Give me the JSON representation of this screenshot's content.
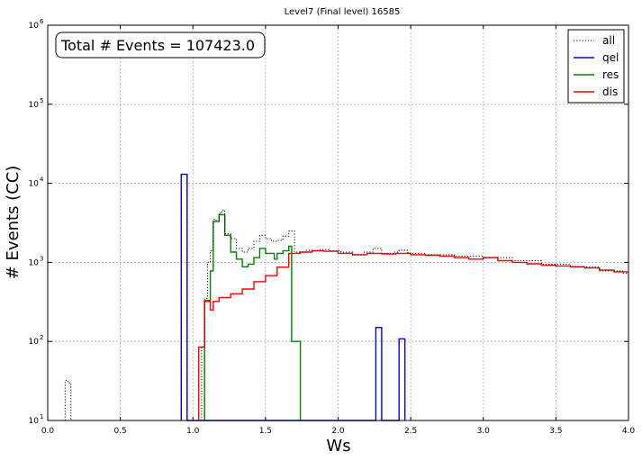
{
  "chart_data": {
    "type": "line",
    "step": true,
    "title": "Level7 (Final level) 16585",
    "xlabel": "Ws",
    "ylabel": "# Events (CC)",
    "xlim": [
      0.0,
      4.0
    ],
    "ylim": [
      10,
      1000000
    ],
    "yscale": "log",
    "grid": true,
    "legend_position": "top-right",
    "annotation": "Total # Events = 107423.0",
    "xticks": [
      "0.0",
      "0.5",
      "1.0",
      "1.5",
      "2.0",
      "2.5",
      "3.0",
      "3.5",
      "4.0"
    ],
    "yticks": [
      {
        "base": "10",
        "exp": "1",
        "value": 10
      },
      {
        "base": "10",
        "exp": "2",
        "value": 100
      },
      {
        "base": "10",
        "exp": "3",
        "value": 1000
      },
      {
        "base": "10",
        "exp": "4",
        "value": 10000
      },
      {
        "base": "10",
        "exp": "5",
        "value": 100000
      },
      {
        "base": "10",
        "exp": "6",
        "value": 1000000
      }
    ],
    "series": [
      {
        "name": "all",
        "color": "#000000",
        "dash": "dotted",
        "points": [
          [
            0.12,
            10
          ],
          [
            0.12,
            32
          ],
          [
            0.14,
            32
          ],
          [
            0.14,
            30
          ],
          [
            0.16,
            30
          ],
          [
            0.16,
            10
          ],
          [
            0.92,
            10
          ],
          [
            0.92,
            13000
          ],
          [
            0.96,
            13000
          ],
          [
            0.96,
            10
          ],
          [
            1.06,
            10
          ],
          [
            1.06,
            85
          ],
          [
            1.08,
            85
          ],
          [
            1.08,
            350
          ],
          [
            1.1,
            350
          ],
          [
            1.1,
            1000
          ],
          [
            1.12,
            1000
          ],
          [
            1.12,
            1400
          ],
          [
            1.14,
            1400
          ],
          [
            1.14,
            3500
          ],
          [
            1.16,
            3500
          ],
          [
            1.16,
            3400
          ],
          [
            1.18,
            3400
          ],
          [
            1.18,
            4200
          ],
          [
            1.2,
            4200
          ],
          [
            1.2,
            4600
          ],
          [
            1.22,
            4600
          ],
          [
            1.22,
            2300
          ],
          [
            1.26,
            2300
          ],
          [
            1.26,
            2000
          ],
          [
            1.3,
            2000
          ],
          [
            1.3,
            1500
          ],
          [
            1.34,
            1500
          ],
          [
            1.34,
            1350
          ],
          [
            1.38,
            1350
          ],
          [
            1.38,
            1500
          ],
          [
            1.42,
            1500
          ],
          [
            1.42,
            1850
          ],
          [
            1.46,
            1850
          ],
          [
            1.46,
            2200
          ],
          [
            1.5,
            2200
          ],
          [
            1.5,
            2000
          ],
          [
            1.54,
            2000
          ],
          [
            1.54,
            1850
          ],
          [
            1.58,
            1850
          ],
          [
            1.58,
            1900
          ],
          [
            1.62,
            1900
          ],
          [
            1.62,
            2150
          ],
          [
            1.66,
            2150
          ],
          [
            1.66,
            2500
          ],
          [
            1.7,
            2500
          ],
          [
            1.7,
            1350
          ],
          [
            1.78,
            1350
          ],
          [
            1.78,
            1420
          ],
          [
            1.86,
            1420
          ],
          [
            1.86,
            1450
          ],
          [
            1.94,
            1450
          ],
          [
            1.94,
            1400
          ],
          [
            2.02,
            1400
          ],
          [
            2.02,
            1350
          ],
          [
            2.1,
            1350
          ],
          [
            2.1,
            1250
          ],
          [
            2.18,
            1250
          ],
          [
            2.18,
            1350
          ],
          [
            2.24,
            1350
          ],
          [
            2.24,
            1500
          ],
          [
            2.3,
            1500
          ],
          [
            2.3,
            1300
          ],
          [
            2.38,
            1300
          ],
          [
            2.38,
            1350
          ],
          [
            2.42,
            1350
          ],
          [
            2.42,
            1420
          ],
          [
            2.48,
            1420
          ],
          [
            2.48,
            1300
          ],
          [
            2.6,
            1300
          ],
          [
            2.6,
            1250
          ],
          [
            2.8,
            1250
          ],
          [
            2.8,
            1200
          ],
          [
            3.0,
            1200
          ],
          [
            3.0,
            1150
          ],
          [
            3.2,
            1150
          ],
          [
            3.2,
            1050
          ],
          [
            3.4,
            1050
          ],
          [
            3.4,
            950
          ],
          [
            3.6,
            950
          ],
          [
            3.6,
            880
          ],
          [
            3.8,
            880
          ],
          [
            3.8,
            780
          ],
          [
            3.96,
            780
          ],
          [
            3.96,
            730
          ],
          [
            4.0,
            730
          ]
        ]
      },
      {
        "name": "qel",
        "color": "#0000ff",
        "dash": "solid",
        "points": [
          [
            0.92,
            10
          ],
          [
            0.92,
            13000
          ],
          [
            0.96,
            13000
          ],
          [
            0.96,
            10
          ],
          [
            2.26,
            10
          ],
          [
            2.26,
            150
          ],
          [
            2.3,
            150
          ],
          [
            2.3,
            10
          ],
          [
            2.42,
            10
          ],
          [
            2.42,
            108
          ],
          [
            2.46,
            108
          ],
          [
            2.46,
            10
          ]
        ]
      },
      {
        "name": "res",
        "color": "#008000",
        "dash": "solid",
        "points": [
          [
            1.08,
            10
          ],
          [
            1.08,
            330
          ],
          [
            1.12,
            330
          ],
          [
            1.12,
            780
          ],
          [
            1.14,
            780
          ],
          [
            1.14,
            3300
          ],
          [
            1.18,
            3300
          ],
          [
            1.18,
            4000
          ],
          [
            1.22,
            4000
          ],
          [
            1.22,
            2200
          ],
          [
            1.26,
            2200
          ],
          [
            1.26,
            1350
          ],
          [
            1.3,
            1350
          ],
          [
            1.3,
            1100
          ],
          [
            1.34,
            1100
          ],
          [
            1.34,
            880
          ],
          [
            1.38,
            880
          ],
          [
            1.38,
            950
          ],
          [
            1.42,
            950
          ],
          [
            1.42,
            1150
          ],
          [
            1.46,
            1150
          ],
          [
            1.46,
            1500
          ],
          [
            1.5,
            1500
          ],
          [
            1.5,
            1300
          ],
          [
            1.56,
            1300
          ],
          [
            1.56,
            1100
          ],
          [
            1.58,
            1100
          ],
          [
            1.58,
            1300
          ],
          [
            1.62,
            1300
          ],
          [
            1.62,
            1400
          ],
          [
            1.66,
            1400
          ],
          [
            1.66,
            1600
          ],
          [
            1.68,
            1600
          ],
          [
            1.68,
            100
          ],
          [
            1.74,
            100
          ],
          [
            1.74,
            10
          ]
        ]
      },
      {
        "name": "dis",
        "color": "#ff0000",
        "dash": "solid",
        "points": [
          [
            1.04,
            10
          ],
          [
            1.04,
            85
          ],
          [
            1.08,
            85
          ],
          [
            1.08,
            320
          ],
          [
            1.12,
            320
          ],
          [
            1.12,
            250
          ],
          [
            1.14,
            250
          ],
          [
            1.14,
            320
          ],
          [
            1.18,
            320
          ],
          [
            1.18,
            360
          ],
          [
            1.26,
            360
          ],
          [
            1.26,
            400
          ],
          [
            1.34,
            400
          ],
          [
            1.34,
            460
          ],
          [
            1.42,
            460
          ],
          [
            1.42,
            570
          ],
          [
            1.5,
            570
          ],
          [
            1.5,
            680
          ],
          [
            1.58,
            680
          ],
          [
            1.58,
            870
          ],
          [
            1.66,
            870
          ],
          [
            1.66,
            1300
          ],
          [
            1.74,
            1300
          ],
          [
            1.74,
            1350
          ],
          [
            1.82,
            1350
          ],
          [
            1.82,
            1400
          ],
          [
            1.9,
            1400
          ],
          [
            1.9,
            1380
          ],
          [
            2.0,
            1380
          ],
          [
            2.0,
            1300
          ],
          [
            2.1,
            1300
          ],
          [
            2.1,
            1250
          ],
          [
            2.2,
            1250
          ],
          [
            2.2,
            1300
          ],
          [
            2.3,
            1300
          ],
          [
            2.3,
            1280
          ],
          [
            2.4,
            1280
          ],
          [
            2.4,
            1300
          ],
          [
            2.5,
            1300
          ],
          [
            2.5,
            1250
          ],
          [
            2.6,
            1250
          ],
          [
            2.6,
            1230
          ],
          [
            2.7,
            1230
          ],
          [
            2.7,
            1200
          ],
          [
            2.8,
            1200
          ],
          [
            2.8,
            1150
          ],
          [
            2.9,
            1150
          ],
          [
            2.9,
            1100
          ],
          [
            3.0,
            1100
          ],
          [
            3.0,
            1150
          ],
          [
            3.1,
            1150
          ],
          [
            3.1,
            1050
          ],
          [
            3.2,
            1050
          ],
          [
            3.2,
            1000
          ],
          [
            3.3,
            1000
          ],
          [
            3.3,
            960
          ],
          [
            3.4,
            960
          ],
          [
            3.4,
            920
          ],
          [
            3.5,
            920
          ],
          [
            3.5,
            900
          ],
          [
            3.6,
            900
          ],
          [
            3.6,
            880
          ],
          [
            3.7,
            880
          ],
          [
            3.7,
            850
          ],
          [
            3.8,
            850
          ],
          [
            3.8,
            800
          ],
          [
            3.9,
            800
          ],
          [
            3.9,
            760
          ],
          [
            4.0,
            760
          ]
        ]
      }
    ]
  }
}
